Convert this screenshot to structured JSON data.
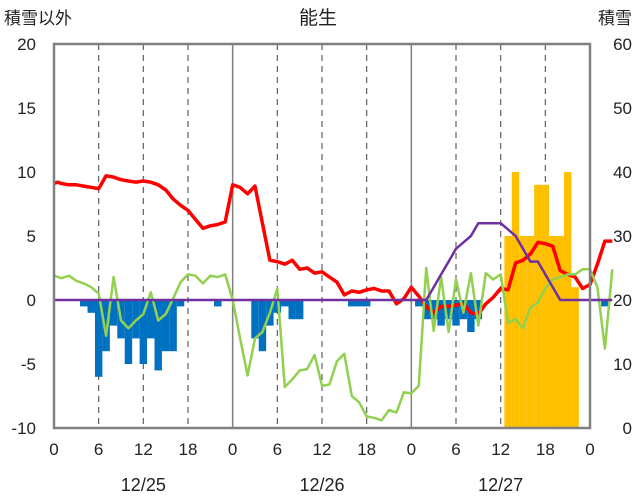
{
  "chart_data": {
    "title": "能生",
    "ylabel_left": "積雪以外",
    "ylabel_right": "積雪",
    "left_axis": {
      "min": -10,
      "max": 20,
      "ticks": [
        20,
        15,
        10,
        5,
        0,
        -5,
        -10
      ]
    },
    "right_axis": {
      "min": 0,
      "max": 60,
      "ticks": [
        60,
        50,
        40,
        30,
        20,
        10,
        0
      ]
    },
    "x_axis": {
      "unit": "hours",
      "min": 0,
      "max": 72,
      "tick_labels": [
        "0",
        "6",
        "12",
        "18",
        "0",
        "6",
        "12",
        "18",
        "0",
        "6",
        "12",
        "18",
        "0"
      ],
      "date_labels": [
        {
          "label": "12/25",
          "hour": 12
        },
        {
          "label": "12/26",
          "hour": 36
        },
        {
          "label": "12/27",
          "hour": 60
        }
      ]
    },
    "grid": "dashed vertical every 6 hours",
    "colors": {
      "temperature": "#ff0000",
      "humidity_like": "#92d050",
      "precip": "#0070c0",
      "snowfall": "#ffc000",
      "snow_depth": "#7030a0",
      "frame": "#808080"
    },
    "series": [
      {
        "type": "line",
        "color": "red",
        "values": [
          [
            0,
            9.1
          ],
          [
            0.5,
            9.2
          ],
          [
            1,
            9.1
          ],
          [
            2,
            9.0
          ],
          [
            3,
            9.0
          ],
          [
            4,
            8.9
          ],
          [
            5,
            8.8
          ],
          [
            6,
            8.7
          ],
          [
            7,
            9.7
          ],
          [
            8,
            9.6
          ],
          [
            9,
            9.4
          ],
          [
            10,
            9.3
          ],
          [
            11,
            9.2
          ],
          [
            12,
            9.3
          ],
          [
            13,
            9.2
          ],
          [
            14,
            9.0
          ],
          [
            15,
            8.6
          ],
          [
            16,
            7.9
          ],
          [
            17,
            7.4
          ],
          [
            18,
            7.0
          ],
          [
            19,
            6.3
          ],
          [
            20,
            5.6
          ],
          [
            21,
            5.8
          ],
          [
            22,
            5.9
          ],
          [
            23,
            6.1
          ],
          [
            24,
            9.0
          ],
          [
            25,
            8.8
          ],
          [
            26,
            8.3
          ],
          [
            27,
            8.9
          ],
          [
            28,
            6.0
          ],
          [
            29,
            3.1
          ],
          [
            30,
            3.0
          ],
          [
            31,
            2.8
          ],
          [
            32,
            3.1
          ],
          [
            33,
            2.4
          ],
          [
            34,
            2.5
          ],
          [
            35,
            2.1
          ],
          [
            36,
            2.2
          ],
          [
            37,
            1.8
          ],
          [
            38,
            1.4
          ],
          [
            39,
            0.4
          ],
          [
            40,
            0.7
          ],
          [
            41,
            0.6
          ],
          [
            42,
            0.8
          ],
          [
            43,
            0.9
          ],
          [
            44,
            0.7
          ],
          [
            45,
            0.7
          ],
          [
            46,
            -0.3
          ],
          [
            47,
            0.1
          ],
          [
            48,
            1.0
          ],
          [
            49,
            0.3
          ],
          [
            50,
            -0.5
          ],
          [
            51,
            -1.0
          ],
          [
            52,
            -0.5
          ],
          [
            53,
            -0.5
          ],
          [
            54,
            -0.4
          ],
          [
            55,
            -0.3
          ],
          [
            56,
            -1.0
          ],
          [
            57,
            -1.1
          ],
          [
            58,
            -0.3
          ],
          [
            59,
            0.2
          ],
          [
            60,
            0.9
          ],
          [
            61,
            0.8
          ],
          [
            62,
            2.9
          ],
          [
            63,
            3.1
          ],
          [
            64,
            3.6
          ],
          [
            65,
            4.5
          ],
          [
            66,
            4.4
          ],
          [
            67,
            4.2
          ],
          [
            68,
            2.3
          ],
          [
            69,
            2.0
          ],
          [
            70,
            1.8
          ],
          [
            71,
            0.9
          ],
          [
            72,
            1.2
          ],
          [
            73,
            2.8
          ],
          [
            74,
            4.6
          ],
          [
            75,
            4.6
          ]
        ]
      },
      {
        "type": "line",
        "color": "green",
        "values": [
          [
            0,
            1.9
          ],
          [
            1,
            1.7
          ],
          [
            2,
            1.9
          ],
          [
            3,
            1.5
          ],
          [
            4,
            1.3
          ],
          [
            5,
            1.0
          ],
          [
            6,
            0.5
          ],
          [
            7,
            -2.8
          ],
          [
            8,
            1.8
          ],
          [
            9,
            -1.6
          ],
          [
            10,
            -2.2
          ],
          [
            11,
            -1.6
          ],
          [
            12,
            -1.1
          ],
          [
            13,
            0.6
          ],
          [
            14,
            -1.6
          ],
          [
            15,
            -1.1
          ],
          [
            16,
            0.1
          ],
          [
            17,
            1.4
          ],
          [
            18,
            2.0
          ],
          [
            19,
            1.9
          ],
          [
            20,
            1.3
          ],
          [
            21,
            1.9
          ],
          [
            22,
            1.8
          ],
          [
            23,
            2.0
          ],
          [
            24,
            0.0
          ],
          [
            25,
            -3.0
          ],
          [
            26,
            -5.9
          ],
          [
            27,
            -3.0
          ],
          [
            28,
            -2.5
          ],
          [
            29,
            -1.0
          ],
          [
            30,
            0.9
          ],
          [
            31,
            -6.8
          ],
          [
            32,
            -6.2
          ],
          [
            33,
            -5.5
          ],
          [
            34,
            -5.4
          ],
          [
            35,
            -4.3
          ],
          [
            36,
            -6.7
          ],
          [
            37,
            -6.6
          ],
          [
            38,
            -4.8
          ],
          [
            39,
            -4.2
          ],
          [
            40,
            -7.5
          ],
          [
            41,
            -8.0
          ],
          [
            42,
            -9.1
          ],
          [
            43,
            -9.2
          ],
          [
            44,
            -9.4
          ],
          [
            45,
            -8.6
          ],
          [
            46,
            -8.8
          ],
          [
            47,
            -7.2
          ],
          [
            48,
            -7.3
          ],
          [
            49,
            -6.7
          ],
          [
            50,
            2.5
          ],
          [
            51,
            -2.4
          ],
          [
            52,
            1.8
          ],
          [
            53,
            -2.5
          ],
          [
            54,
            1.6
          ],
          [
            55,
            -1.0
          ],
          [
            56,
            2.1
          ],
          [
            57,
            -2.0
          ],
          [
            58,
            2.1
          ],
          [
            59,
            1.6
          ],
          [
            60,
            2.0
          ],
          [
            61,
            -1.8
          ],
          [
            62,
            -1.5
          ],
          [
            63,
            -2.2
          ],
          [
            64,
            -0.6
          ],
          [
            65,
            -0.2
          ],
          [
            66,
            0.9
          ],
          [
            67,
            1.6
          ],
          [
            68,
            1.8
          ],
          [
            69,
            2.0
          ],
          [
            70,
            2.0
          ],
          [
            71,
            2.4
          ],
          [
            72,
            2.4
          ],
          [
            73,
            1.0
          ],
          [
            74,
            -3.8
          ],
          [
            75,
            2.4
          ]
        ]
      },
      {
        "type": "bar",
        "color": "blue",
        "values": [
          [
            0,
            0
          ],
          [
            1,
            0
          ],
          [
            2,
            0
          ],
          [
            3,
            0
          ],
          [
            4,
            -0.5
          ],
          [
            5,
            -1.0
          ],
          [
            6,
            -6.0
          ],
          [
            7,
            -4.0
          ],
          [
            8,
            -2.0
          ],
          [
            9,
            -3.0
          ],
          [
            10,
            -5.0
          ],
          [
            11,
            -3.0
          ],
          [
            12,
            -5.0
          ],
          [
            13,
            -3.0
          ],
          [
            14,
            -5.5
          ],
          [
            15,
            -4.0
          ],
          [
            16,
            -4.0
          ],
          [
            17,
            -0.5
          ],
          [
            18,
            0
          ],
          [
            19,
            0
          ],
          [
            20,
            0
          ],
          [
            21,
            0
          ],
          [
            22,
            -0.5
          ],
          [
            23,
            0
          ],
          [
            24,
            0
          ],
          [
            25,
            0
          ],
          [
            26,
            0
          ],
          [
            27,
            -3.0
          ],
          [
            28,
            -4.0
          ],
          [
            29,
            -2.0
          ],
          [
            30,
            -1.0
          ],
          [
            31,
            -0.5
          ],
          [
            32,
            -1.5
          ],
          [
            33,
            -1.5
          ],
          [
            34,
            0
          ],
          [
            35,
            0
          ],
          [
            36,
            0
          ],
          [
            37,
            0
          ],
          [
            38,
            0
          ],
          [
            39,
            0
          ],
          [
            40,
            -0.5
          ],
          [
            41,
            -0.5
          ],
          [
            42,
            -0.5
          ],
          [
            43,
            0
          ],
          [
            44,
            0
          ],
          [
            45,
            0
          ],
          [
            46,
            0
          ],
          [
            47,
            0
          ],
          [
            48,
            0
          ],
          [
            49,
            -0.5
          ],
          [
            50,
            -1.5
          ],
          [
            51,
            -1.5
          ],
          [
            52,
            -2.0
          ],
          [
            53,
            -1.5
          ],
          [
            54,
            -2.0
          ],
          [
            55,
            -1.5
          ],
          [
            56,
            -2.5
          ],
          [
            57,
            -1.5
          ],
          [
            58,
            0
          ],
          [
            59,
            0
          ],
          [
            60,
            0
          ],
          [
            61,
            0
          ],
          [
            62,
            0
          ],
          [
            63,
            0
          ],
          [
            64,
            0
          ],
          [
            65,
            0
          ],
          [
            66,
            0
          ],
          [
            67,
            0
          ],
          [
            68,
            0
          ],
          [
            69,
            0
          ],
          [
            70,
            0
          ],
          [
            71,
            0
          ],
          [
            72,
            0
          ],
          [
            73,
            0
          ],
          [
            74,
            -0.5
          ],
          [
            75,
            0
          ]
        ]
      },
      {
        "type": "bar",
        "color": "orange",
        "axis": "right",
        "values": [
          [
            61,
            30
          ],
          [
            62,
            40
          ],
          [
            63,
            30
          ],
          [
            64,
            30
          ],
          [
            65,
            38
          ],
          [
            66,
            38
          ],
          [
            67,
            30
          ],
          [
            68,
            30
          ],
          [
            69,
            40
          ],
          [
            70,
            22
          ]
        ]
      },
      {
        "type": "line",
        "color": "purple",
        "values": [
          [
            0,
            0
          ],
          [
            50,
            0
          ],
          [
            51,
            1
          ],
          [
            52,
            2
          ],
          [
            53,
            3
          ],
          [
            54,
            4
          ],
          [
            55,
            4.5
          ],
          [
            56,
            5
          ],
          [
            57,
            6
          ],
          [
            58,
            6
          ],
          [
            59,
            6
          ],
          [
            60,
            6
          ],
          [
            61,
            5.5
          ],
          [
            62,
            5
          ],
          [
            63,
            4
          ],
          [
            64,
            3
          ],
          [
            65,
            3
          ],
          [
            66,
            2
          ],
          [
            67,
            1
          ],
          [
            68,
            0
          ],
          [
            75,
            0
          ]
        ]
      }
    ]
  }
}
